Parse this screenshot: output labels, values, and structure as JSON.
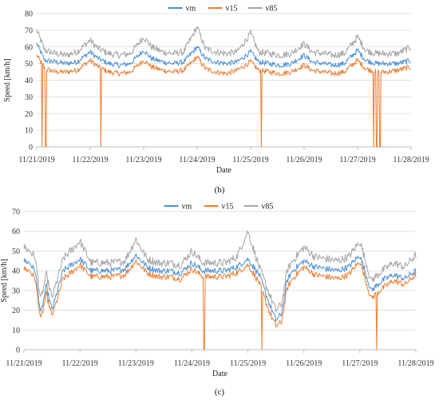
{
  "chart_data": [
    {
      "type": "line",
      "panel_label": "(b)",
      "xlabel": "Date",
      "ylabel": "Speed [km/h]",
      "ylim": [
        0,
        80
      ],
      "yticks": [
        0,
        10,
        20,
        30,
        40,
        50,
        60,
        70,
        80
      ],
      "xlim": [
        "11/21/2019",
        "11/28/2019"
      ],
      "x_tick_labels": [
        "11/21/2019",
        "11/22/2019",
        "11/23/2019",
        "11/24/2019",
        "11/25/2019",
        "11/26/2019",
        "11/27/2019",
        "11/28/2019"
      ],
      "grid": "horizontal",
      "legend_position": "top-center",
      "series": [
        {
          "name": "vm",
          "color": "#4a90d9"
        },
        {
          "name": "v15",
          "color": "#ed7d31"
        },
        {
          "name": "v85",
          "color": "#a5a5a5"
        }
      ],
      "profile": {
        "x_days": [
          0,
          0.15,
          0.35,
          0.55,
          0.75,
          1.0,
          1.15,
          1.35,
          1.55,
          1.75,
          2.0,
          2.15,
          2.35,
          2.55,
          2.75,
          3.0,
          3.15,
          3.35,
          3.55,
          3.75,
          4.0,
          4.15,
          4.35,
          4.55,
          4.75,
          5.0,
          5.15,
          5.35,
          5.55,
          5.75,
          6.0,
          6.15,
          6.35,
          6.55,
          6.75,
          7.0
        ],
        "vm": [
          62,
          52,
          51,
          50,
          51,
          57,
          53,
          50,
          49,
          50,
          58,
          53,
          51,
          50,
          51,
          60,
          53,
          51,
          50,
          51,
          57,
          51,
          50,
          49,
          50,
          55,
          51,
          50,
          49,
          50,
          58,
          52,
          50,
          50,
          50,
          52
        ],
        "v15": [
          55,
          47,
          45,
          45,
          46,
          52,
          48,
          45,
          44,
          45,
          52,
          48,
          46,
          45,
          46,
          54,
          47,
          45,
          44,
          46,
          51,
          46,
          45,
          44,
          45,
          49,
          46,
          45,
          44,
          45,
          52,
          47,
          45,
          45,
          46,
          48
        ],
        "v85": [
          70,
          58,
          56,
          55,
          57,
          64,
          59,
          56,
          55,
          56,
          66,
          60,
          57,
          56,
          57,
          72,
          59,
          57,
          56,
          57,
          68,
          57,
          56,
          55,
          56,
          62,
          57,
          56,
          55,
          56,
          66,
          58,
          56,
          56,
          56,
          60
        ]
      },
      "v15_drops_to_zero_days": [
        0.1,
        0.17,
        1.2,
        4.2,
        6.3,
        6.36,
        6.42
      ]
    },
    {
      "type": "line",
      "panel_label": "(c)",
      "xlabel": "Date",
      "ylabel": "Speed [km/h]",
      "ylim": [
        0,
        70
      ],
      "yticks": [
        0,
        10,
        20,
        30,
        40,
        50,
        60,
        70
      ],
      "xlim": [
        "11/21/2019",
        "11/28/2019"
      ],
      "x_tick_labels": [
        "11/21/2019",
        "11/22/2019",
        "11/23/2019",
        "11/24/2019",
        "11/25/2019",
        "11/26/2019",
        "11/27/2019",
        "11/28/2019"
      ],
      "grid": "horizontal",
      "legend_position": "top-center",
      "series": [
        {
          "name": "vm",
          "color": "#4a90d9"
        },
        {
          "name": "v15",
          "color": "#ed7d31"
        },
        {
          "name": "v85",
          "color": "#a5a5a5"
        }
      ],
      "profile": {
        "x_days": [
          0,
          0.1,
          0.2,
          0.3,
          0.4,
          0.5,
          0.6,
          0.7,
          0.8,
          1.0,
          1.2,
          1.4,
          1.6,
          1.8,
          2.0,
          2.2,
          2.4,
          2.6,
          2.8,
          3.0,
          3.2,
          3.4,
          3.6,
          3.8,
          4.0,
          4.2,
          4.4,
          4.5,
          4.6,
          4.7,
          4.8,
          5.0,
          5.2,
          5.4,
          5.6,
          5.8,
          6.0,
          6.2,
          6.4,
          6.6,
          6.8,
          7.0
        ],
        "vm": [
          45,
          44,
          40,
          18,
          32,
          20,
          30,
          40,
          42,
          46,
          40,
          40,
          40,
          41,
          48,
          42,
          40,
          40,
          39,
          44,
          40,
          40,
          40,
          42,
          46,
          38,
          22,
          15,
          18,
          35,
          40,
          45,
          42,
          41,
          40,
          42,
          48,
          30,
          35,
          38,
          36,
          40
        ],
        "v15": [
          41,
          40,
          36,
          15,
          28,
          17,
          26,
          36,
          38,
          43,
          37,
          37,
          37,
          38,
          45,
          39,
          37,
          37,
          36,
          41,
          37,
          37,
          37,
          39,
          43,
          34,
          18,
          12,
          14,
          31,
          36,
          42,
          38,
          37,
          36,
          38,
          45,
          26,
          31,
          35,
          33,
          38
        ],
        "v85": [
          52,
          50,
          47,
          25,
          38,
          26,
          36,
          46,
          49,
          55,
          44,
          44,
          44,
          45,
          56,
          46,
          44,
          44,
          43,
          50,
          44,
          44,
          44,
          47,
          60,
          42,
          27,
          20,
          23,
          40,
          45,
          52,
          47,
          46,
          45,
          47,
          55,
          35,
          40,
          44,
          42,
          48
        ]
      },
      "v15_drops_to_zero_days": [
        3.22,
        4.25,
        6.3
      ]
    }
  ]
}
